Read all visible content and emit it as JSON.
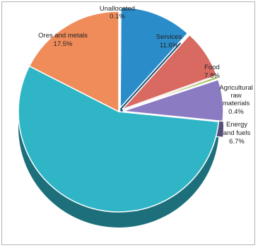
{
  "chart_data": {
    "type": "pie",
    "title": "",
    "slices": [
      {
        "label": "Unallocated",
        "value_label": "0.1%",
        "value": 0.1,
        "color": "#c9c9c9"
      },
      {
        "label": "Services",
        "value_label": "11.6%",
        "value": 11.6,
        "color": "#2a8cc8"
      },
      {
        "label": "Food",
        "value_label": "7.8%",
        "value": 7.8,
        "color": "#d86a62"
      },
      {
        "label": "Agricultural raw materials",
        "value_label": "0.4%",
        "value": 0.4,
        "color": "#9bb84a"
      },
      {
        "label": "Energy and fuels",
        "value_label": "6.7%",
        "value": 6.7,
        "color": "#8a7bc2"
      },
      {
        "label": "",
        "value_label": "",
        "value": 55.9,
        "color": "#2fb5c6"
      },
      {
        "label": "Ores and metals",
        "value_label": "17.5%",
        "value": 17.5,
        "color": "#f08c5a"
      }
    ],
    "label_lines": {
      "unallocated": [
        "Unallocated",
        "0.1%"
      ],
      "services": [
        "Services",
        "11.6%"
      ],
      "food": [
        "Food",
        "7.8%"
      ],
      "agricultural": [
        "Agricultural",
        "raw",
        "materials",
        "0.4%"
      ],
      "energy": [
        "Energy",
        "and fuels",
        "6.7%"
      ],
      "ores": [
        "Ores and metals",
        "17.5%"
      ]
    }
  }
}
